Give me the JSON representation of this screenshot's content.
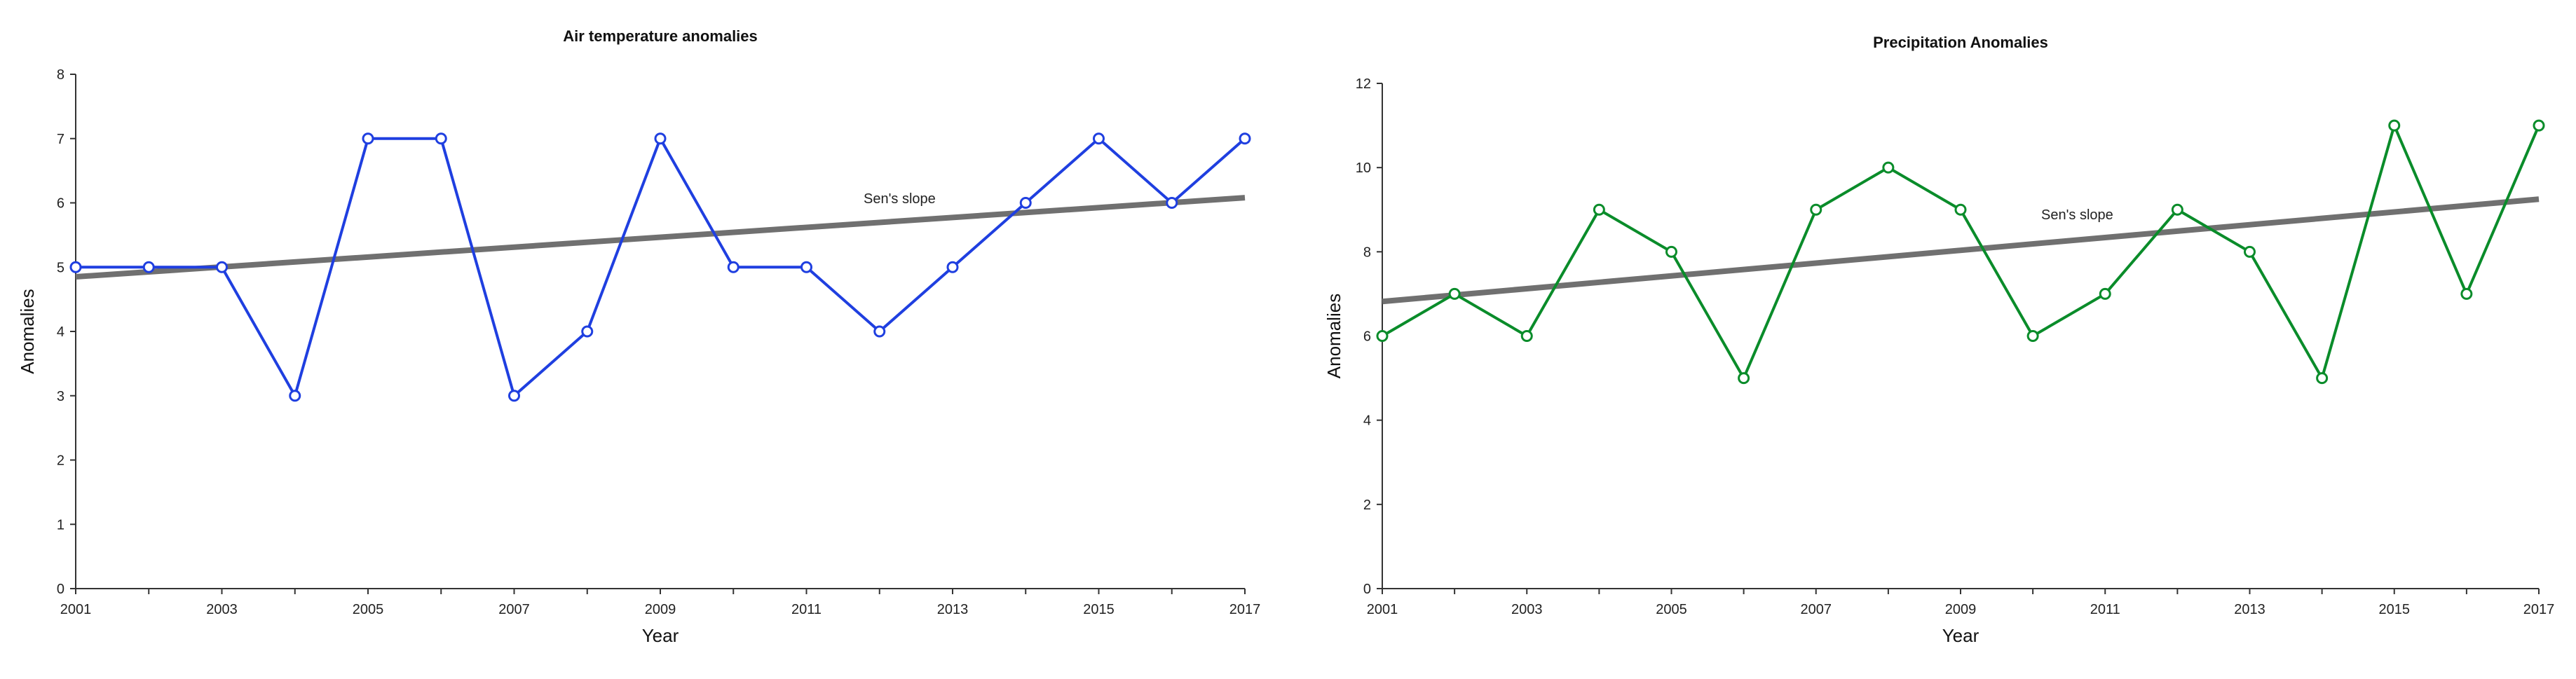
{
  "chart_data": [
    {
      "type": "line",
      "title": "Air temperature anomalies",
      "xlabel": "Year",
      "ylabel": "Anomalies",
      "x": [
        2001,
        2002,
        2003,
        2004,
        2005,
        2006,
        2007,
        2008,
        2009,
        2010,
        2011,
        2012,
        2013,
        2014,
        2015,
        2016,
        2017
      ],
      "xticks": [
        "2001",
        "2003",
        "2005",
        "2007",
        "2009",
        "2011",
        "2013",
        "2015",
        "2017"
      ],
      "xlim": [
        2001,
        2017
      ],
      "ylim": [
        0,
        8
      ],
      "yticks": [
        "0",
        "1",
        "2",
        "3",
        "4",
        "5",
        "6",
        "7",
        "8"
      ],
      "grid": false,
      "series": [
        {
          "color": "#1f3fe0",
          "values": [
            5,
            5,
            5,
            3,
            7,
            7,
            3,
            4,
            7,
            5,
            5,
            4,
            5,
            6,
            7,
            6,
            7
          ]
        }
      ],
      "trend": {
        "label": "Sen's slope",
        "start": [
          2001,
          4.85
        ],
        "end": [
          2017,
          6.08
        ],
        "color": "#707070"
      }
    },
    {
      "type": "line",
      "title": "Precipitation Anomalies",
      "xlabel": "Year",
      "ylabel": "Anomalies",
      "x": [
        2001,
        2002,
        2003,
        2004,
        2005,
        2006,
        2007,
        2008,
        2009,
        2010,
        2011,
        2012,
        2013,
        2014,
        2015,
        2016,
        2017
      ],
      "xticks": [
        "2001",
        "2003",
        "2005",
        "2007",
        "2009",
        "2011",
        "2013",
        "2015",
        "2017"
      ],
      "xlim": [
        2001,
        2017
      ],
      "ylim": [
        0,
        12
      ],
      "yticks": [
        "0",
        "2",
        "4",
        "6",
        "8",
        "10",
        "12"
      ],
      "grid": false,
      "series": [
        {
          "color": "#0a8c2a",
          "values": [
            6,
            7,
            6,
            9,
            8,
            5,
            9,
            10,
            9,
            6,
            7,
            9,
            8,
            5,
            11,
            7,
            11
          ]
        }
      ],
      "trend": {
        "label": "Sen's slope",
        "start": [
          2001,
          6.82
        ],
        "end": [
          2017,
          9.25
        ],
        "color": "#707070"
      }
    }
  ]
}
